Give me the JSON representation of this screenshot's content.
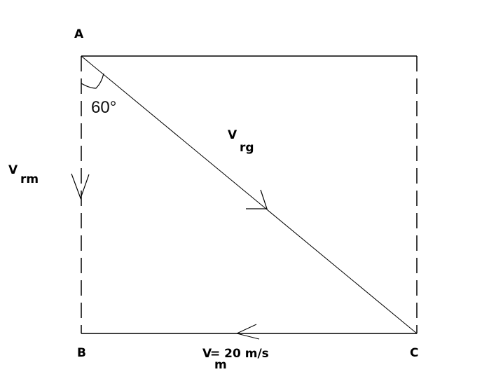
{
  "diagram": {
    "points": {
      "A": "A",
      "B": "B",
      "C": "C"
    },
    "angle_label": "60°",
    "vrg": {
      "main": "V",
      "sub": "rg"
    },
    "vrm": {
      "main": "V",
      "sub": "rm"
    },
    "vm": {
      "main": "V",
      "sub": "m",
      "value": " = 20 m/s"
    },
    "colors": {
      "line": "#000000",
      "background": "#ffffff"
    }
  }
}
